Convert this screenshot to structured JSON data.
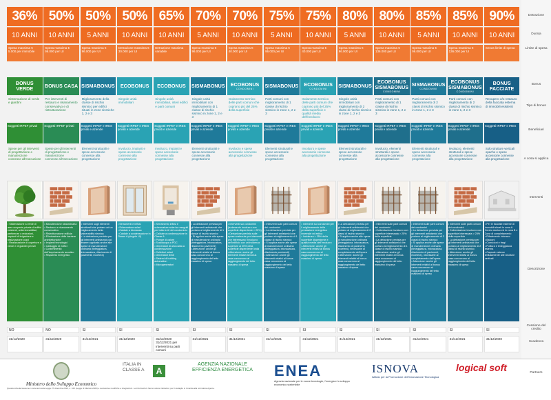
{
  "row_labels": [
    "Detrazione",
    "Durata",
    "Limite di spesa",
    "Bonus",
    "Tipo di bonus",
    "Beneficiari",
    "A cosa si applica",
    "Interventi",
    "Descrizione",
    "Cessione del credito",
    "Scadenza",
    "Partners"
  ],
  "columns": [
    {
      "pct": "36%",
      "dur": "10 ANNI",
      "lim": "Spesa massima € 5.000 per immobile",
      "bonus": "BONUS VERDE",
      "sub": "",
      "color": "#2f8f35",
      "tipo": "Sistemazione di verde e giardini",
      "ben": "Soggetti IRPEF privati",
      "cosa": "Spese per gli interventi di progettazione e manutenzione connesse all'esecuzione",
      "img": "tree",
      "desc": "• Sistemazione a verde di aree scoperte private di edifici esistenti, unità immobiliari, pertinenze o recinzioni, impianti di irrigazione e realizzazione pozzi\n• Realizzazione di coperture a verde e di giardini pensili",
      "cess": "NO",
      "sca": "31/12/2020"
    },
    {
      "pct": "50%",
      "dur": "10 ANNI",
      "lim": "Spesa massima € 96.000 per UI",
      "bonus": "BONUS CASA",
      "sub": "",
      "color": "#2a8c55",
      "tipo": "Per interventi di restauro e risanamento conservativo e di ristrutturazione",
      "ben": "Soggetti IRPEF privati",
      "cosa": "Spese per gli interventi di progettazione e manutenzione connesse all'esecuzione",
      "img": "bricks",
      "desc": "• Manutenzione straordinaria\n• Restauro e risanamento conservativo\n• Ristrutturazione edilizia\n• Eliminazione delle barriere architettoniche\n• Impianti tecnologici\n• Cablaggio di edifici\n• Contenimento dell'inquinamento acustico\n• Risparmio energetico",
      "cess": "NO",
      "sca": "31/12/2020"
    },
    {
      "pct": "50%",
      "dur": "5 ANNI",
      "lim": "Spesa massima € 96.000 per UI",
      "bonus": "SISMABONUS",
      "sub": "",
      "color": "#1f7a9a",
      "tipo": "Miglioramento della classe di rischio sismico per edifici situati in zone sismiche 1, 2 e 3",
      "ben": "Soggetti IRPEF e IRES privati e aziende",
      "cosa": "Elementi strutturali e spese accessorie connesse alla progettazione",
      "img": "wall",
      "desc": "• Interventi sugli elementi strutturali che portano ad un miglioramento della vulnerabilità sismica\n• La detrazione prevista per gli interventi antisismici può essere applicata anche alle spese di manutenzione ordinaria (tinteggiatura, intonacatura, rifacimento di pavimenti, eccetera)",
      "cess": "SI",
      "sca": "31/12/2021"
    },
    {
      "pct": "50%",
      "dur": "10 ANNI",
      "lim": "Detrazione massima € 30.000 per UI",
      "bonus": "ECOBONUS",
      "sub": "",
      "color": "#2aa3b4",
      "tipo": "Singole unità immobiliari",
      "ben": "Soggetti IRPEF e IRES privati e aziende",
      "cosa": "Involucro, impianti e spese accessorie connesse alla progettazione",
      "img": "window",
      "desc": "• Serramenti e infissi\n• Schermature solari\n• Caldaie a biomassa\n• Caldaie a condensazione in Classe A (singole UI)",
      "cess": "SI",
      "sca": "31/12/2020"
    },
    {
      "pct": "65%",
      "dur": "10 ANNI",
      "lim": "Detrazione massima variabile",
      "bonus": "ECOBONUS",
      "sub": "",
      "color": "#2aa3b4",
      "tipo": "Singole unità immobiliari, interi edifici e parti comuni",
      "ben": "Soggetti IRPEF e IRES privati e aziende",
      "cosa": "Involucro, impianti e spese accessorie connesse alla progettazione",
      "img": "boiler",
      "desc": "• Serramenti, infissi e schermature solari se eseguiti per tutta la UI del condominio\n• Caldaie a condensazione in Classe A\n• Pompe di calore\n• Scaldacqua a PDC\n• Generatori di aria calda a condensazione\n• Collettori solari\n• Generatori ibridi\n• Sistemi di building automation\n• Microgeneratori",
      "cess": "SI",
      "sca": "31/12/2020 31/12/2021 per interventi su parti comuni"
    },
    {
      "pct": "70%",
      "dur": "5 ANNI",
      "lim": "Spesa massima € 96.000 per UI",
      "bonus": "SISMABONUS",
      "sub": "",
      "color": "#1f7a9a",
      "tipo": "Singole unità immobiliari con miglioramento di 1 classe di rischio sismico in zone 1, 2 e 3",
      "ben": "Soggetti IRPEF e IRES privati e aziende",
      "cosa": "Elementi strutturali e spese accessorie connesse alla progettazione",
      "img": "bricks",
      "desc": "• La detrazione prevista per gli interventi antisismici che portano al miglioramento di 1 classe di rischio sismico\n• Si applica anche alle spese di manutenzione ordinaria (tinteggiatura, intonacatura, rifacimento pavimenti)\n• Attenzione: anche gli interventi relativi al bonus casa concorrono al raggiungimento del tetto massimo di spesa",
      "cess": "SI",
      "sca": "31/12/2021"
    },
    {
      "pct": "70%",
      "dur": "10 ANNI",
      "lim": "Spesa massima € 40.000 per UI",
      "bonus": "ECOBONUS",
      "sub": "CONDOMINI",
      "color": "#2aa3b4",
      "tipo": "Isolamento termico delle parti comuni che coprono più del 25% della superficie",
      "ben": "Soggetti IRPEF e IRES privati e aziende",
      "cosa": "Involucro e spese accessorie connesse alla progettazione",
      "img": "wall",
      "desc": "• Interventi sui condomini (isolamento involucro con superficie disperdente > 25%)\n• Detrazione prevista sulle spese sostenute per interventi che interessano l'involucro dell'edificio con un'incidenza superiore al 25% della superficie disperdente lorda\n• Attenzione: anche gli interventi relativi al bonus casa concorrono al raggiungimento del tetto massimo di spesa",
      "cess": "SI",
      "sca": "31/12/2021"
    },
    {
      "pct": "75%",
      "dur": "5 ANNI",
      "lim": "Spesa massima € 96.000 per UI",
      "bonus": "SISMABONUS",
      "sub": "",
      "color": "#1f7a9a",
      "tipo": "Parti comuni con miglioramento di 1 classe di rischio sismico in zone 1, 2 e 3",
      "ben": "Soggetti IRPEF e IRES privati e aziende",
      "cosa": "Elementi strutturali e spese accessorie connesse alla progettazione",
      "img": "rebar",
      "desc": "• Interventi sulle parti comuni dei condomini\n• La detrazione prevista per gli interventi antisismici che portano al miglioramento di 1 classe di rischio sismico\n• Si applica anche alle spese di manutenzione ordinaria (tinteggiatura, intonacatura, rifacimento pavimenti)\n• Attenzione: anche gli interventi relativi al bonus casa concorrono al raggiungimento del tetto massimo di spesa",
      "cess": "SI",
      "sca": "31/12/2021"
    },
    {
      "pct": "75%",
      "dur": "10 ANNI",
      "lim": "Spesa massima € 40.000 per UI",
      "bonus": "ECOBONUS",
      "sub": "CONDOMINI",
      "color": "#2aa3b4",
      "tipo": "Isolamento termico delle parti comuni che coprono più del 25% della superficie e qualità media dell'involucro",
      "ben": "Soggetti IRPEF e IRES privati e aziende",
      "cosa": "Involucro e spese accessorie connesse alla progettazione",
      "img": "wall",
      "desc": "• Interventi sui condomini per il miglioramento della prestazione energetica invernale ed estiva\n• Incidenza > 25% della superficie disperdente e qualità media dell'involucro\n• Attenzione: anche gli interventi relativi al bonus casa concorrono al raggiungimento del tetto massimo di spesa",
      "cess": "SI",
      "sca": "31/12/2021"
    },
    {
      "pct": "80%",
      "dur": "5 ANNI",
      "lim": "Spesa massima € 96.000 per UI",
      "bonus": "SISMABONUS",
      "sub": "",
      "color": "#1f7a9a",
      "tipo": "Singole unità immobiliari con miglioramento di 2 classi di rischio sismico in zone 1, 2 e 3",
      "ben": "Soggetti IRPEF e IRES privati e aziende",
      "cosa": "Elementi strutturali e spese accessorie connesse alla progettazione",
      "img": "bricks",
      "desc": "• La detrazione prevista per gli interventi antisismici che portano al miglioramento di 2 classi di rischio sismico\n• Si applica anche alle spese di manutenzione ordinaria (tinteggiatura, intonacatura, rifacimento di pavimenti, eccetera), necessarie al completamento dell'opera\n• Attenzione: anche gli interventi relativi al bonus casa concorrono al raggiungimento del tetto massimo di spesa",
      "cess": "SI",
      "sca": "31/12/2021"
    },
    {
      "pct": "80%",
      "dur": "10 ANNI",
      "lim": "Spesa massima € 136.000 per UI",
      "bonus": "ECOBONUS SISMABONUS",
      "sub": "CONDOMINI",
      "color": "#1f6f8c",
      "tipo": "Parti comuni con miglioramento di 1 classe di rischio sismico in zone 1, 2 e 3",
      "ben": "Soggetti IRPEF e IRES privati e aziende",
      "cosa": "Involucro, elementi strutturali e spese accessorie connesse alla progettazione",
      "img": "rebar",
      "desc": "• Interventi sulle parti comuni dei condomini\n• Coibentazione involucro con superficie interessata > 25% della superficie\n• La detrazione prevista per gli interventi antisismici che portano al miglioramento di 1 classe di rischio sismico\n• Attenzione: anche gli interventi relativi al bonus casa concorrono al raggiungimento del tetto massimo di spesa",
      "cess": "SI",
      "sca": "31/12/2021"
    },
    {
      "pct": "85%",
      "dur": "5 ANNI",
      "lim": "Spesa massima € 96.000 per UI",
      "bonus": "SISMABONUS",
      "sub": "CONDOMINI",
      "color": "#1f7a9a",
      "tipo": "Parti comuni con miglioramento di 2 classi di rischio sismico in zone 1, 2 e 3",
      "ben": "Soggetti IRPEF e IRES privati e aziende",
      "cosa": "Elementi strutturali e spese accessorie connesse alla progettazione",
      "img": "rebar",
      "desc": "• Interventi sulle parti comuni dei condomini\n• La detrazione prevista per gli interventi antisismici che portano al miglioramento di 2 classi di rischio sismico\n• Si applica anche alle spese di manutenzione ordinaria (tinteggiatura, intonacatura, rifacimento di pavimenti, eccetera), necessarie al completamento dell'opera\n• Attenzione: anche gli interventi relativi al bonus casa concorrono al raggiungimento del tetto massimo di spesa",
      "cess": "SI",
      "sca": "31/12/2021"
    },
    {
      "pct": "85%",
      "dur": "10 ANNI",
      "lim": "Spesa massima € 136.000 per UI",
      "bonus": "ECOBONUS SISMABONUS",
      "sub": "CONDOMINI",
      "color": "#1f6f8c",
      "tipo": "Parti comuni con miglioramento di 2 classi di rischio sismico in zone 1, 2 e 3",
      "ben": "Soggetti IRPEF e IRES privati e aziende",
      "cosa": "Involucro, elementi strutturali e spese accessorie connesse alla progettazione",
      "img": "bricks",
      "desc": "• Interventi sulle parti comuni dei condomini\n• Coibentazione involucro con superficie interessata > 25% della superficie\n• La detrazione prevista per gli interventi antisismici che portano al miglioramento di 2 classi di rischio sismico\n• Attenzione: anche gli interventi relativi al bonus casa concorrono al raggiungimento del tetto massimo di spesa",
      "cess": "SI",
      "sca": "31/12/2021"
    },
    {
      "pct": "90%",
      "dur": "10 ANNI",
      "lim": "Senza limite di spesa",
      "bonus": "BONUS FACCIATE",
      "sub": "",
      "color": "#175f86",
      "tipo": "Recupero e/o restauro della facciata esterna di immobili esistenti",
      "ben": "Soggetti IRPEF e IRES",
      "cosa": "Solo strutture verticali opache e spese accessorie connesse alla progettazione",
      "img": "facade",
      "desc": "• Per le facciate esterne di immobili situati in zona A Centro storico ed in zona B e Zone di completamento\n• Rifacimento intonaco\n• Balconi\n• Cornicioni e fregi\n• Pulitura e tinteggiatura esterna\n• Capsule esterne limitatamente alle strutture verticali",
      "cess": "SI",
      "sca": "31/12/2020"
    }
  ],
  "partners": [
    {
      "name": "Ministero dello Sviluppo Economico"
    },
    {
      "name": "ITALIA IN CLASSE A"
    },
    {
      "name": "AGENZIA NAZIONALE EFFICIENZA ENERGETICA"
    },
    {
      "name": "ENEA",
      "sub": "Agenzia nazionale per le nuove tecnologie, l'energia e lo sviluppo economico sostenibile"
    },
    {
      "name": "ISNOVA",
      "sub": "Istituto per la Promozione dell'Innovazione Tecnologica"
    },
    {
      "name": "logical soft"
    }
  ],
  "footnote": "Questa scheda riassume i contenuti della Legge 27 dicembre 2019, n. 160 (Legge di bilancio 2020) e successive modifiche e integrazioni. Le informazioni hanno valore indicativo; per il dettaglio si rimanda alla normativa vigente."
}
